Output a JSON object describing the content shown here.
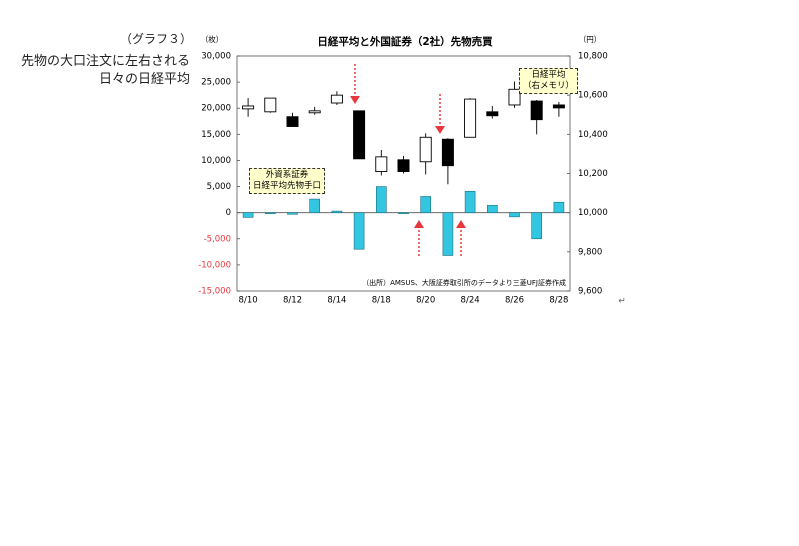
{
  "header": {
    "label": "（グラフ３）",
    "title_lines": [
      "先物の大口注文に左右される",
      "日々の日経平均"
    ]
  },
  "return_mark": "↵",
  "chart_data": {
    "type": "candlestick_bar",
    "title": "日経平均と外国証券（2社）先物売買",
    "y_unit": "（枚）",
    "y2_unit": "（円）",
    "source": "（出所）AMSUS、大阪証券取引所のデータより三菱UFJ証券作成",
    "categories": [
      "8/10",
      null,
      "8/12",
      null,
      "8/14",
      null,
      "8/18",
      null,
      "8/20",
      null,
      "8/24",
      null,
      "8/26",
      null,
      "8/28"
    ],
    "series": [
      {
        "type": "bar",
        "name": "外資系証券\n日経平均先物手口",
        "color": "#33c6e0",
        "values": [
          -900,
          -200,
          -300,
          2600,
          300,
          -7000,
          5000,
          -200,
          3100,
          -8200,
          4100,
          1400,
          -800,
          -5000,
          2000
        ]
      },
      {
        "type": "candlestick",
        "name": "日経平均\n（右メモリ）",
        "axis": "y2",
        "up_color": "#ffffff",
        "down_color": "#000000",
        "open": [
          10530,
          10515,
          10490,
          10510,
          10560,
          10520,
          10210,
          10270,
          10260,
          10375,
          10385,
          10515,
          10550,
          10570,
          10550
        ],
        "high": [
          10585,
          10585,
          10510,
          10540,
          10620,
          10520,
          10320,
          10290,
          10405,
          10380,
          10585,
          10545,
          10670,
          10575,
          10565
        ],
        "low": [
          10490,
          10510,
          10440,
          10500,
          10550,
          10275,
          10190,
          10200,
          10195,
          10145,
          10385,
          10480,
          10535,
          10400,
          10490
        ],
        "close": [
          10545,
          10585,
          10440,
          10520,
          10600,
          10275,
          10285,
          10210,
          10385,
          10240,
          10580,
          10495,
          10630,
          10475,
          10535
        ]
      }
    ],
    "ylim": [
      -15000,
      30000
    ],
    "yticks": [
      {
        "value": -15000,
        "label": "-15,000"
      },
      {
        "value": -10000,
        "label": "-10,000"
      },
      {
        "value": -5000,
        "label": "-5,000"
      },
      0,
      {
        "value": 5000,
        "label": "5,000"
      },
      {
        "value": 10000,
        "label": "10,000"
      },
      {
        "value": 15000,
        "label": "15,000"
      },
      {
        "value": 20000,
        "label": "20,000"
      },
      {
        "value": 25000,
        "label": "25,000"
      },
      {
        "value": 30000,
        "label": "30,000"
      }
    ],
    "y2lim": [
      9600,
      10800
    ],
    "y2ticks": [
      {
        "value": 9600,
        "label": "9,600"
      },
      {
        "value": 9800,
        "label": "9,800"
      },
      {
        "value": 10000,
        "label": "10,000"
      },
      {
        "value": 10200,
        "label": "10,200"
      },
      {
        "value": 10400,
        "label": "10,400"
      },
      {
        "value": 10600,
        "label": "10,600"
      },
      {
        "value": 10800,
        "label": "10,800"
      }
    ],
    "negative_tick_color": "#e8383d"
  }
}
